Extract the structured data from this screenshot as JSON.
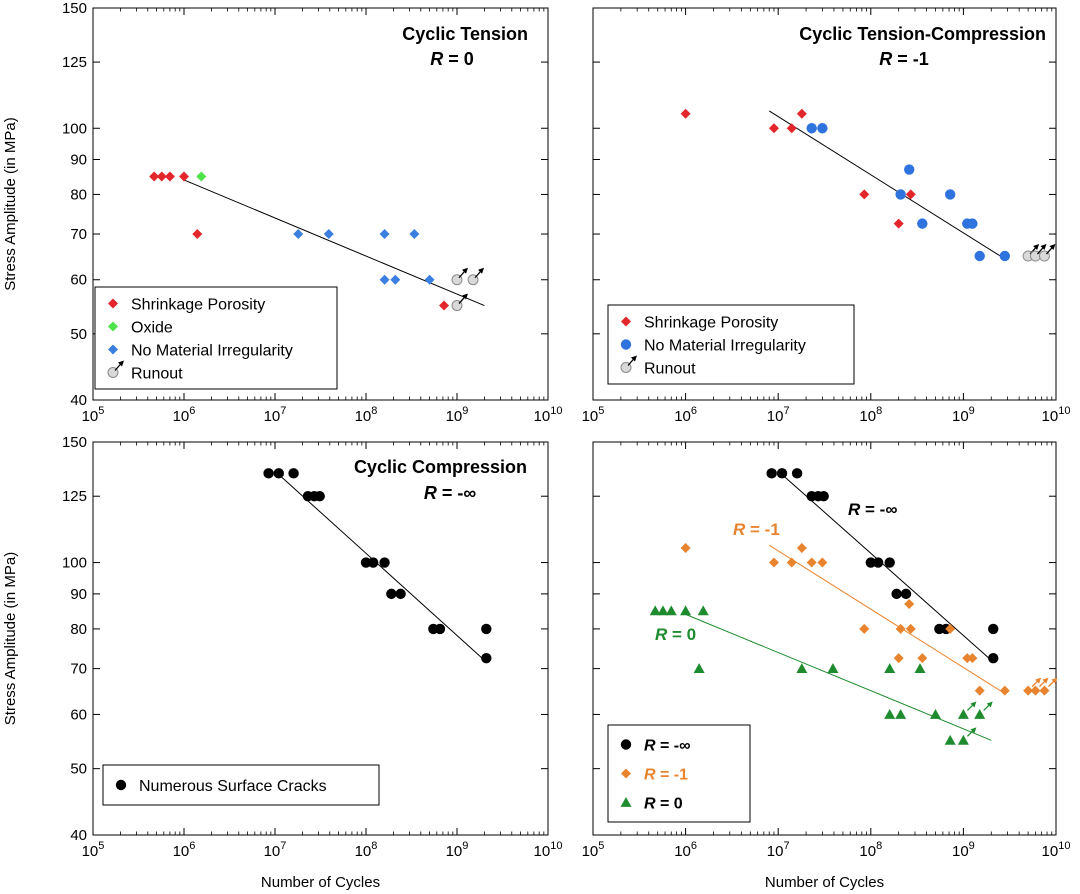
{
  "figure": {
    "y_axis_label": "Stress Amplitude (in MPa)",
    "x_axis_label": "Number of Cycles",
    "x_tick_mantissa": "10",
    "x_tick_exponents": [
      "5",
      "6",
      "7",
      "8",
      "9",
      "10"
    ],
    "y_ticks": [
      40,
      50,
      60,
      70,
      80,
      90,
      100,
      125,
      150
    ]
  },
  "colors": {
    "shrinkage": "#e3262b",
    "oxide": "#4fe34a",
    "no_irregularity_tension": "#3b7fe0",
    "no_irregularity_tc": "#2f73df",
    "runout": "#d9d9d9",
    "black": "#000000",
    "orange": "#e8842e",
    "green": "#1e8c2e"
  },
  "chart_data": [
    {
      "id": "tension",
      "type": "scatter",
      "title": "Cyclic Tension",
      "subtitle": "R = 0",
      "xscale": "log",
      "xlim": [
        100000,
        10000000000
      ],
      "yscale": "log",
      "ylim": [
        40,
        150
      ],
      "legend": "bottom-left",
      "series": [
        {
          "name": "Shrinkage Porosity",
          "marker": "diamond",
          "color": "#e3262b",
          "points": [
            [
              470000,
              85
            ],
            [
              570000,
              85
            ],
            [
              700000,
              85
            ],
            [
              1000000,
              85
            ],
            [
              1400000,
              70
            ],
            [
              720000000,
              55
            ]
          ]
        },
        {
          "name": "Oxide",
          "marker": "diamond",
          "color": "#4fe34a",
          "points": [
            [
              1550000,
              85
            ]
          ]
        },
        {
          "name": "No Material Irregularity",
          "marker": "diamond",
          "color": "#3b7fe0",
          "points": [
            [
              18000000,
              70
            ],
            [
              39000000,
              70
            ],
            [
              160000000,
              70
            ],
            [
              340000000,
              70
            ],
            [
              160000000,
              60
            ],
            [
              210000000,
              60
            ],
            [
              500000000,
              60
            ]
          ]
        },
        {
          "name": "Runout",
          "marker": "runout",
          "color": "#d9d9d9",
          "points": [
            [
              1000000000,
              55
            ],
            [
              1000000000,
              60
            ],
            [
              1500000000,
              60
            ]
          ]
        }
      ],
      "fit": [
        [
          1000000,
          84
        ],
        [
          2000000000,
          55
        ]
      ]
    },
    {
      "id": "tension-compression",
      "type": "scatter",
      "title": "Cyclic Tension-Compression",
      "subtitle": "R = -1",
      "xscale": "log",
      "xlim": [
        100000,
        10000000000
      ],
      "yscale": "log",
      "ylim": [
        40,
        150
      ],
      "legend": "bottom-left",
      "series": [
        {
          "name": "Shrinkage Porosity",
          "marker": "diamond",
          "color": "#e3262b",
          "points": [
            [
              1000000,
              105
            ],
            [
              9000000,
              100
            ],
            [
              14000000,
              100
            ],
            [
              18000000,
              105
            ],
            [
              85000000,
              80
            ],
            [
              200000000,
              72.5
            ],
            [
              270000000,
              80
            ]
          ]
        },
        {
          "name": "No Material Irregularity",
          "marker": "circle",
          "color": "#2f73df",
          "points": [
            [
              23000000,
              100
            ],
            [
              30000000,
              100
            ],
            [
              210000000,
              80
            ],
            [
              260000000,
              87
            ],
            [
              360000000,
              72.5
            ],
            [
              720000000,
              80
            ],
            [
              1100000000,
              72.5
            ],
            [
              1250000000,
              72.5
            ],
            [
              1500000000,
              65
            ],
            [
              2800000000,
              65
            ]
          ]
        },
        {
          "name": "Runout",
          "marker": "runout",
          "color": "#d9d9d9",
          "points": [
            [
              5000000000,
              65
            ],
            [
              6000000000,
              65
            ],
            [
              7500000000,
              65
            ]
          ]
        }
      ],
      "fit": [
        [
          8000000,
          106
        ],
        [
          2500000000,
          65
        ]
      ]
    },
    {
      "id": "compression",
      "type": "scatter",
      "title": "Cyclic Compression",
      "subtitle": "R = -∞",
      "xscale": "log",
      "xlim": [
        100000,
        10000000000
      ],
      "yscale": "log",
      "ylim": [
        40,
        150
      ],
      "legend": "bottom-left",
      "series": [
        {
          "name": "Numerous Surface Cracks",
          "marker": "circle",
          "color": "#000000",
          "points": [
            [
              8500000,
              135
            ],
            [
              11000000,
              135
            ],
            [
              16000000,
              135
            ],
            [
              23000000,
              125
            ],
            [
              27000000,
              125
            ],
            [
              31000000,
              125
            ],
            [
              100000000,
              100
            ],
            [
              120000000,
              100
            ],
            [
              160000000,
              100
            ],
            [
              190000000,
              90
            ],
            [
              240000000,
              90
            ],
            [
              550000000,
              80
            ],
            [
              650000000,
              80
            ],
            [
              2100000000,
              80
            ],
            [
              2100000000,
              72.5
            ]
          ]
        }
      ],
      "fit": [
        [
          10000000,
          136
        ],
        [
          2000000000,
          72
        ]
      ]
    },
    {
      "id": "comparison",
      "type": "scatter",
      "title": "",
      "xscale": "log",
      "xlim": [
        100000,
        10000000000
      ],
      "yscale": "log",
      "ylim": [
        40,
        150
      ],
      "legend": "bottom-left",
      "series": [
        {
          "name": "R = -∞",
          "marker": "circle",
          "color": "#000000",
          "points": [
            [
              8500000,
              135
            ],
            [
              11000000,
              135
            ],
            [
              16000000,
              135
            ],
            [
              23000000,
              125
            ],
            [
              27000000,
              125
            ],
            [
              31000000,
              125
            ],
            [
              100000000,
              100
            ],
            [
              120000000,
              100
            ],
            [
              160000000,
              100
            ],
            [
              190000000,
              90
            ],
            [
              240000000,
              90
            ],
            [
              550000000,
              80
            ],
            [
              650000000,
              80
            ],
            [
              2100000000,
              80
            ],
            [
              2100000000,
              72.5
            ]
          ],
          "fit": [
            [
              10000000,
              136
            ],
            [
              2000000000,
              72
            ]
          ]
        },
        {
          "name": "R = -1",
          "marker": "diamond",
          "color": "#e8842e",
          "points": [
            [
              1000000,
              105
            ],
            [
              9000000,
              100
            ],
            [
              14000000,
              100
            ],
            [
              18000000,
              105
            ],
            [
              23000000,
              100
            ],
            [
              30000000,
              100
            ],
            [
              85000000,
              80
            ],
            [
              200000000,
              72.5
            ],
            [
              210000000,
              80
            ],
            [
              260000000,
              87
            ],
            [
              270000000,
              80
            ],
            [
              360000000,
              72.5
            ],
            [
              720000000,
              80
            ],
            [
              1100000000,
              72.5
            ],
            [
              1250000000,
              72.5
            ],
            [
              1500000000,
              65
            ],
            [
              2800000000,
              65
            ],
            [
              5000000000,
              65
            ],
            [
              6000000000,
              65
            ],
            [
              7500000000,
              65
            ]
          ],
          "runout_points": [
            [
              5000000000,
              65
            ],
            [
              6000000000,
              65
            ],
            [
              7500000000,
              65
            ]
          ],
          "fit": [
            [
              8000000,
              106
            ],
            [
              2500000000,
              65
            ]
          ]
        },
        {
          "name": "R = 0",
          "marker": "triangle",
          "color": "#1e8c2e",
          "points": [
            [
              470000,
              85
            ],
            [
              570000,
              85
            ],
            [
              700000,
              85
            ],
            [
              1000000,
              85
            ],
            [
              1400000,
              70
            ],
            [
              1550000,
              85
            ],
            [
              18000000,
              70
            ],
            [
              39000000,
              70
            ],
            [
              160000000,
              70
            ],
            [
              340000000,
              70
            ],
            [
              160000000,
              60
            ],
            [
              210000000,
              60
            ],
            [
              500000000,
              60
            ],
            [
              720000000,
              55
            ],
            [
              1000000000,
              55
            ],
            [
              1000000000,
              60
            ],
            [
              1500000000,
              60
            ]
          ],
          "runout_points": [
            [
              1000000000,
              55
            ],
            [
              1000000000,
              60
            ],
            [
              1500000000,
              60
            ]
          ],
          "fit": [
            [
              1000000,
              84
            ],
            [
              2000000000,
              55
            ]
          ]
        }
      ],
      "annotations": [
        "R = -∞",
        "R = -1",
        "R = 0"
      ]
    }
  ]
}
